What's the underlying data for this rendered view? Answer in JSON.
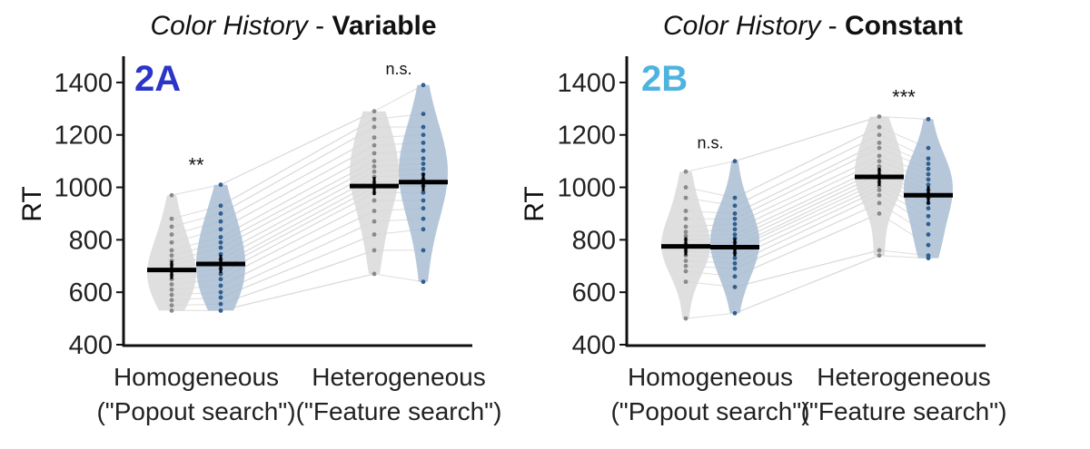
{
  "colors": {
    "grey_fill": "#d9d9d9",
    "grey_point": "#8a8a8a",
    "blue_fill": "#a9bdd3",
    "blue_point": "#2f5f8f",
    "line": "#cfcfcf",
    "panel_a_label": "#2b35c8",
    "panel_b_label": "#4fb3e0"
  },
  "chart_data": [
    {
      "type": "violin",
      "panel_label": "2A",
      "title_italic": "Color History",
      "title_sep": " - ",
      "title_bold": "Variable",
      "ylabel": "RT",
      "ylim": [
        400,
        1500
      ],
      "yticks": [
        "400",
        "600",
        "800",
        "1000",
        "1200",
        "1400"
      ],
      "categories": [
        "Homogeneous\n(\"Popout search\")",
        "Heterogeneous\n(\"Feature search\")"
      ],
      "category_lines": [
        [
          "Homogeneous",
          "(\"Popout search\")"
        ],
        [
          "Heterogeneous",
          "(\"Feature search\")"
        ]
      ],
      "series_colors": [
        "grey",
        "blue"
      ],
      "groups": [
        {
          "significance": "**",
          "grey": {
            "mean": 685,
            "min": 530,
            "max": 970,
            "points": [
              530,
              550,
              570,
              590,
              610,
              630,
              650,
              665,
              680,
              690,
              705,
              720,
              740,
              760,
              790,
              820,
              850,
              880,
              970
            ]
          },
          "blue": {
            "mean": 708,
            "min": 530,
            "max": 1010,
            "points": [
              530,
              555,
              580,
              600,
              625,
              650,
              670,
              690,
              705,
              725,
              745,
              770,
              790,
              810,
              840,
              870,
              900,
              930,
              1010
            ]
          }
        },
        {
          "significance": "n.s.",
          "grey": {
            "mean": 1005,
            "min": 670,
            "max": 1290,
            "points": [
              670,
              760,
              820,
              870,
              910,
              950,
              980,
              1000,
              1020,
              1040,
              1060,
              1080,
              1100,
              1130,
              1160,
              1190,
              1230,
              1260,
              1290
            ]
          },
          "blue": {
            "mean": 1020,
            "min": 640,
            "max": 1390,
            "points": [
              640,
              760,
              840,
              880,
              920,
              950,
              980,
              1005,
              1030,
              1050,
              1070,
              1090,
              1110,
              1140,
              1170,
              1200,
              1230,
              1280,
              1390
            ]
          }
        }
      ]
    },
    {
      "type": "violin",
      "panel_label": "2B",
      "title_italic": "Color History",
      "title_sep": " - ",
      "title_bold": "Constant",
      "ylabel": "RT",
      "ylim": [
        400,
        1500
      ],
      "yticks": [
        "400",
        "600",
        "800",
        "1000",
        "1200",
        "1400"
      ],
      "categories": [
        "Homogeneous\n(\"Popout search\")",
        "Heterogeneous\n(\"Feature search\")"
      ],
      "category_lines": [
        [
          "Homogeneous",
          "(\"Popout search\")"
        ],
        [
          "Heterogeneous",
          "(\"Feature search\")"
        ]
      ],
      "series_colors": [
        "grey",
        "blue"
      ],
      "groups": [
        {
          "significance": "n.s.",
          "grey": {
            "mean": 775,
            "min": 500,
            "max": 1060,
            "points": [
              500,
              640,
              680,
              700,
              720,
              740,
              755,
              765,
              775,
              785,
              800,
              815,
              830,
              850,
              880,
              910,
              960,
              1000,
              1060
            ]
          },
          "blue": {
            "mean": 772,
            "min": 520,
            "max": 1100,
            "points": [
              520,
              620,
              660,
              690,
              710,
              730,
              750,
              765,
              775,
              790,
              805,
              820,
              840,
              860,
              880,
              900,
              930,
              960,
              1100
            ]
          }
        },
        {
          "significance": "***",
          "grey": {
            "mean": 1040,
            "min": 740,
            "max": 1270,
            "points": [
              740,
              760,
              900,
              940,
              970,
              990,
              1005,
              1020,
              1035,
              1050,
              1065,
              1080,
              1100,
              1120,
              1150,
              1170,
              1200,
              1230,
              1270
            ]
          },
          "blue": {
            "mean": 970,
            "min": 730,
            "max": 1260,
            "points": [
              730,
              740,
              780,
              820,
              860,
              890,
              920,
              940,
              960,
              975,
              990,
              1010,
              1030,
              1050,
              1070,
              1090,
              1110,
              1150,
              1260
            ]
          }
        }
      ]
    }
  ]
}
